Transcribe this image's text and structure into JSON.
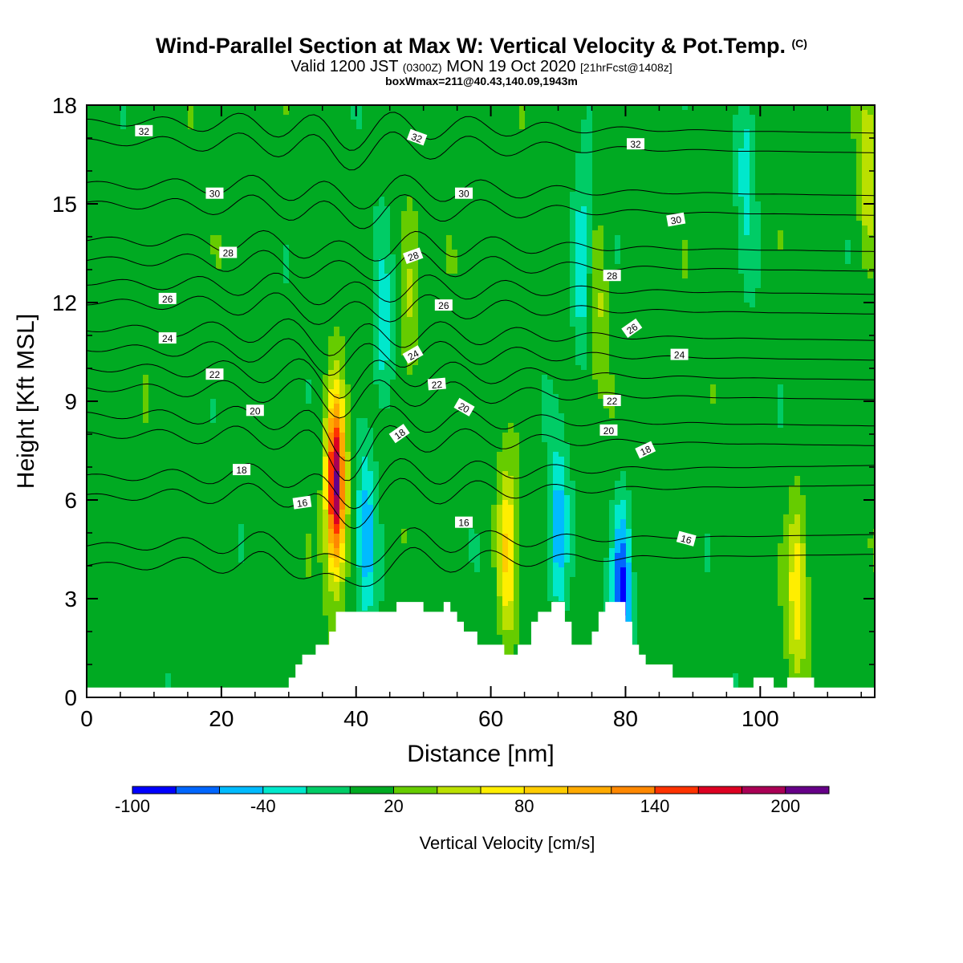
{
  "header": {
    "title_main": "Wind-Parallel Section at Max W: Vertical Velocity & Pot.Temp.",
    "title_unit": "(C)",
    "valid_prefix": "Valid 1200 JST",
    "valid_utc": "(0300Z)",
    "valid_date": "MON 19 Oct 2020",
    "forecast": "[21hrFcst@1408z]",
    "boxwmax": "boxWmax=211@40.43,140.09,1943m"
  },
  "chart_data": {
    "type": "heatmap",
    "xlabel": "Distance [nm]",
    "ylabel": "Height [Kft MSL]",
    "xlim": [
      0,
      117
    ],
    "ylim": [
      0,
      18
    ],
    "x_ticks": [
      "0",
      "20",
      "40",
      "60",
      "80",
      "100"
    ],
    "y_ticks": [
      "0",
      "3",
      "6",
      "9",
      "12",
      "15",
      "18"
    ],
    "colorbar": {
      "title": "Vertical Velocity [cm/s]",
      "tick_labels": [
        "-100",
        "-40",
        "20",
        "80",
        "140",
        "200"
      ],
      "levels": [
        -100,
        -80,
        -60,
        -40,
        -20,
        0,
        20,
        40,
        60,
        80,
        100,
        120,
        140,
        160,
        180,
        200,
        220
      ],
      "colors": [
        "#0000ff",
        "#0066ff",
        "#00bbff",
        "#00e8cc",
        "#00cc66",
        "#00aa22",
        "#66cc00",
        "#bbe000",
        "#ffee00",
        "#ffcc00",
        "#ffaa00",
        "#ff8800",
        "#ff3300",
        "#dd0022",
        "#aa0055",
        "#660088"
      ]
    },
    "background_value": 10,
    "updrafts": [
      {
        "x": 37,
        "z": 6.5,
        "peak": 211
      },
      {
        "x": 62.5,
        "z": 4.2,
        "peak": 85
      },
      {
        "x": 105.5,
        "z": 3.5,
        "peak": 80
      },
      {
        "x": 48,
        "z": 12,
        "peak": 45
      },
      {
        "x": 76,
        "z": 12,
        "peak": 40
      },
      {
        "x": 116,
        "z": 16,
        "peak": 60
      }
    ],
    "downdrafts": [
      {
        "x": 41.5,
        "z": 5,
        "peak": -55
      },
      {
        "x": 70,
        "z": 5,
        "peak": -55
      },
      {
        "x": 79.5,
        "z": 3.3,
        "peak": -85
      },
      {
        "x": 73.5,
        "z": 13,
        "peak": -45
      },
      {
        "x": 98,
        "z": 16,
        "peak": -35
      },
      {
        "x": 44,
        "z": 11,
        "peak": -35
      }
    ],
    "terrain": {
      "x": [
        0,
        29,
        30,
        31,
        32,
        34,
        36,
        37,
        45,
        46,
        50,
        53,
        54,
        55,
        56,
        58,
        60,
        62,
        64,
        66,
        67,
        69,
        70,
        71,
        72,
        74,
        75,
        76,
        77,
        79,
        80,
        81,
        82,
        83,
        84,
        87,
        93,
        96,
        97,
        99,
        100,
        102,
        104,
        106,
        108,
        117
      ],
      "z": [
        0.3,
        0.3,
        0.6,
        1.0,
        1.3,
        1.6,
        2.0,
        2.6,
        2.6,
        2.9,
        2.6,
        2.9,
        2.6,
        2.3,
        2.0,
        1.6,
        1.6,
        1.3,
        1.6,
        2.3,
        2.6,
        2.9,
        2.9,
        2.3,
        1.6,
        1.6,
        2.0,
        2.6,
        2.9,
        2.9,
        2.3,
        1.6,
        1.3,
        1.0,
        1.0,
        0.6,
        0.6,
        0.3,
        0.3,
        0.6,
        0.6,
        0.3,
        0.6,
        0.6,
        0.3,
        0.3
      ]
    },
    "theta_contours": {
      "levels": [
        16,
        18,
        20,
        22,
        24,
        26,
        28,
        30,
        32
      ],
      "labels": [
        {
          "text": "16",
          "x": 32,
          "z": 5.9,
          "rot": -8
        },
        {
          "text": "16",
          "x": 56,
          "z": 5.3,
          "rot": 0
        },
        {
          "text": "16",
          "x": 89,
          "z": 4.8,
          "rot": 15
        },
        {
          "text": "18",
          "x": 23,
          "z": 6.9,
          "rot": 0
        },
        {
          "text": "18",
          "x": 46.5,
          "z": 8.0,
          "rot": -35
        },
        {
          "text": "18",
          "x": 83,
          "z": 7.5,
          "rot": -25
        },
        {
          "text": "20",
          "x": 25,
          "z": 8.7,
          "rot": 0
        },
        {
          "text": "20",
          "x": 56,
          "z": 8.8,
          "rot": 30
        },
        {
          "text": "20",
          "x": 77.5,
          "z": 8.1,
          "rot": 0
        },
        {
          "text": "22",
          "x": 19,
          "z": 9.8,
          "rot": 0
        },
        {
          "text": "22",
          "x": 52,
          "z": 9.5,
          "rot": -5
        },
        {
          "text": "22",
          "x": 78,
          "z": 9.0,
          "rot": 0
        },
        {
          "text": "24",
          "x": 12,
          "z": 10.9,
          "rot": 0
        },
        {
          "text": "24",
          "x": 48.5,
          "z": 10.4,
          "rot": -30
        },
        {
          "text": "24",
          "x": 88,
          "z": 10.4,
          "rot": 0
        },
        {
          "text": "26",
          "x": 12,
          "z": 12.1,
          "rot": 0
        },
        {
          "text": "26",
          "x": 53,
          "z": 11.9,
          "rot": 0
        },
        {
          "text": "26",
          "x": 81,
          "z": 11.2,
          "rot": -35
        },
        {
          "text": "28",
          "x": 21,
          "z": 13.5,
          "rot": 0
        },
        {
          "text": "28",
          "x": 48.5,
          "z": 13.4,
          "rot": -20
        },
        {
          "text": "28",
          "x": 78,
          "z": 12.8,
          "rot": 0
        },
        {
          "text": "30",
          "x": 19,
          "z": 15.3,
          "rot": 0
        },
        {
          "text": "30",
          "x": 56,
          "z": 15.3,
          "rot": 0
        },
        {
          "text": "30",
          "x": 87.5,
          "z": 14.5,
          "rot": -10
        },
        {
          "text": "32",
          "x": 8.5,
          "z": 17.2,
          "rot": 0
        },
        {
          "text": "32",
          "x": 49,
          "z": 17.0,
          "rot": 20
        },
        {
          "text": "32",
          "x": 81.5,
          "z": 16.8,
          "rot": 0
        }
      ]
    }
  }
}
